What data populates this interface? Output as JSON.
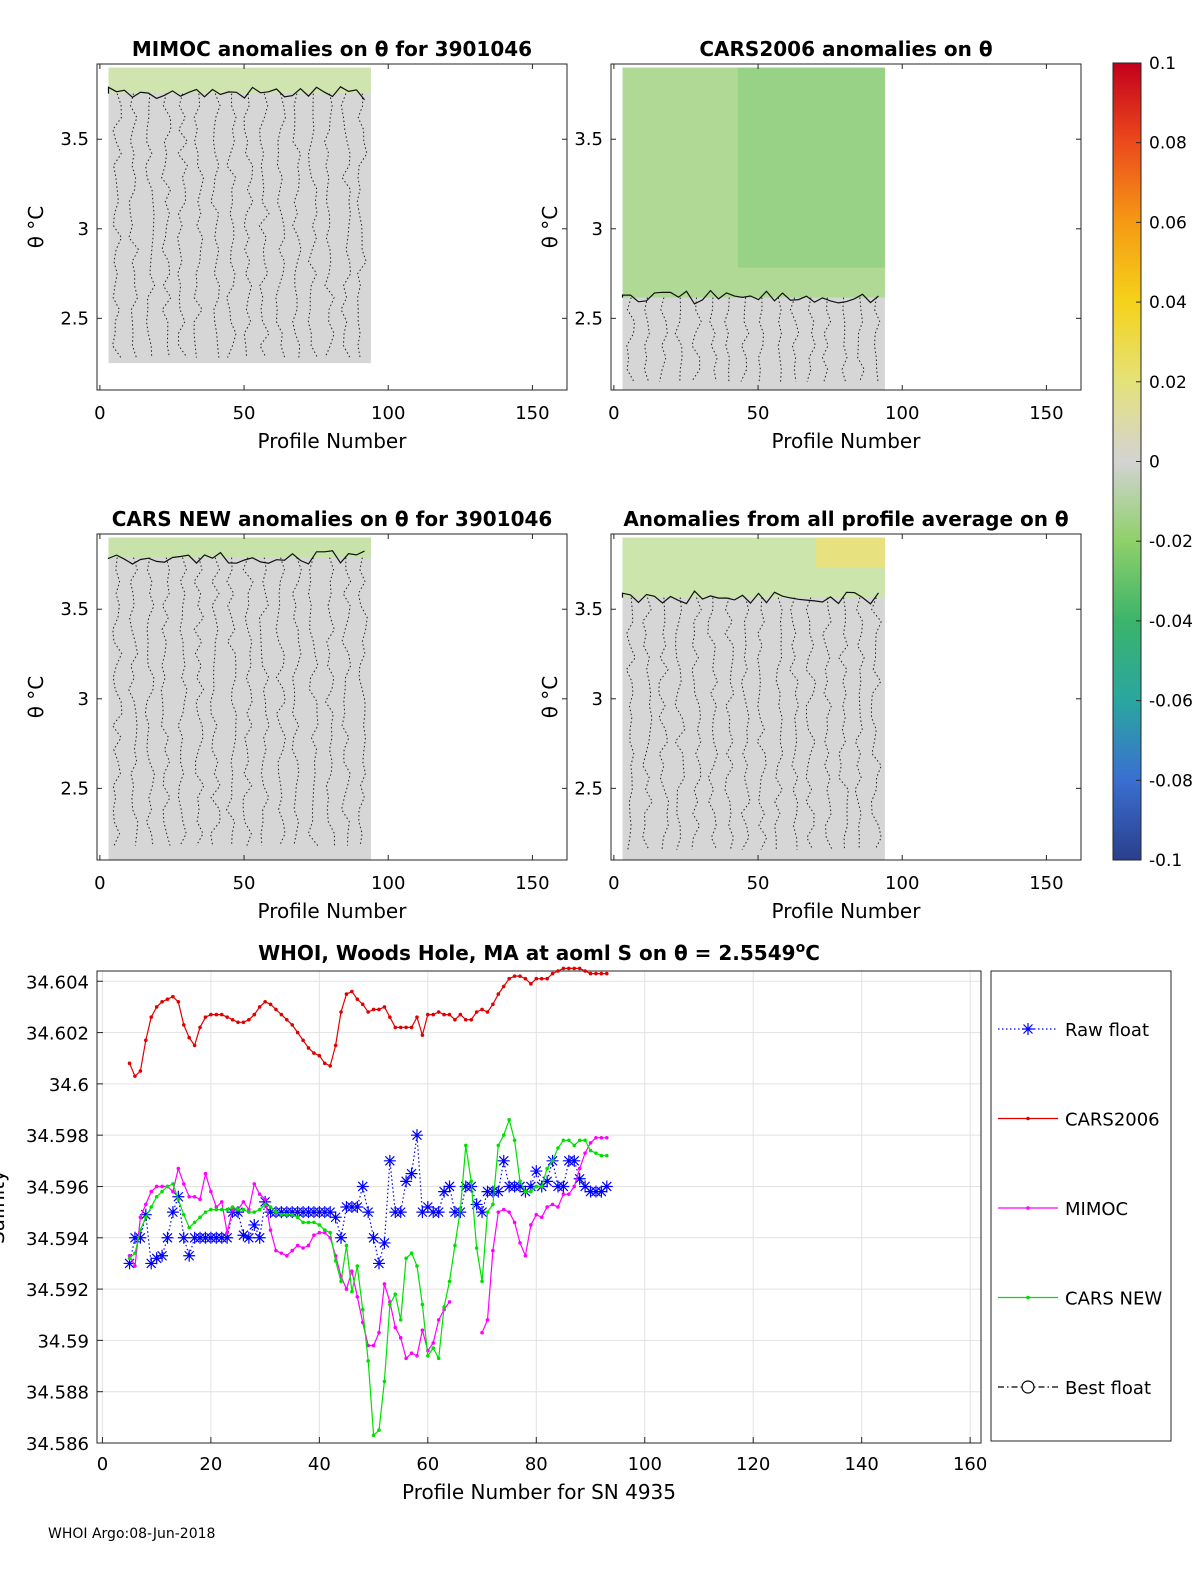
{
  "footer": "WHOI Argo:08-Jun-2018",
  "colorbar": {
    "ticks": [
      "0.1",
      "0.08",
      "0.06",
      "0.04",
      "0.02",
      "0",
      "-0.02",
      "-0.04",
      "-0.06",
      "-0.08",
      "-0.1"
    ],
    "stops": [
      "#2b3f8c",
      "#3a6fd1",
      "#2aa6a0",
      "#3bb46a",
      "#8fd06a",
      "#d3d3d3",
      "#e4e27a",
      "#f5d21a",
      "#f59a14",
      "#ec4a1c",
      "#c2001c"
    ]
  },
  "chart_data": [
    {
      "type": "heatmap",
      "title": "MIMOC anomalies on θ  for 3901046",
      "xlabel": "Profile Number",
      "ylabel": "θ °C",
      "xlim": [
        -1,
        162
      ],
      "ylim": [
        2.1,
        3.92
      ],
      "xticks": [
        "0",
        "50",
        "100",
        "150"
      ],
      "yticks": [
        "2.5",
        "3",
        "3.5"
      ],
      "data_extent": {
        "x": [
          3,
          94
        ],
        "y": [
          2.25,
          3.9
        ]
      },
      "anomaly_fill": "#cfe6a8"
    },
    {
      "type": "heatmap",
      "title": "CARS2006 anomalies on θ",
      "xlabel": "Profile Number",
      "ylabel": "θ °C",
      "xlim": [
        -1,
        162
      ],
      "ylim": [
        2.1,
        3.92
      ],
      "xticks": [
        "0",
        "50",
        "100",
        "150"
      ],
      "yticks": [
        "2.5",
        "3",
        "3.5"
      ],
      "data_extent": {
        "x": [
          3,
          94
        ],
        "y": [
          2.1,
          3.9
        ]
      },
      "anomaly_fill": "#a9d98a"
    },
    {
      "type": "heatmap",
      "title": "CARS NEW anomalies on θ for 3901046",
      "xlabel": "Profile Number",
      "ylabel": "θ °C",
      "xlim": [
        -1,
        162
      ],
      "ylim": [
        2.1,
        3.92
      ],
      "xticks": [
        "0",
        "50",
        "100",
        "150"
      ],
      "yticks": [
        "2.5",
        "3",
        "3.5"
      ],
      "data_extent": {
        "x": [
          3,
          94
        ],
        "y": [
          2.1,
          3.9
        ]
      },
      "anomaly_fill": "#c6e5a2"
    },
    {
      "type": "heatmap",
      "title": "Anomalies from all profile average on θ",
      "xlabel": "Profile Number",
      "ylabel": "θ °C",
      "xlim": [
        -1,
        162
      ],
      "ylim": [
        2.1,
        3.92
      ],
      "xticks": [
        "0",
        "50",
        "100",
        "150"
      ],
      "yticks": [
        "2.5",
        "3",
        "3.5"
      ],
      "data_extent": {
        "x": [
          3,
          94
        ],
        "y": [
          2.1,
          3.9
        ]
      },
      "anomaly_fill": "#c9e7a6"
    },
    {
      "type": "line",
      "title": "WHOI, Woods Hole, MA at aoml S on θ = 2.5549°C",
      "xlabel": "Profile Number for SN 4935",
      "ylabel": "Salinity",
      "xlim": [
        -1,
        162
      ],
      "ylim": [
        34.586,
        34.6044
      ],
      "xticks": [
        "0",
        "20",
        "40",
        "60",
        "80",
        "100",
        "120",
        "140",
        "160"
      ],
      "yticks": [
        "34.586",
        "34.588",
        "34.59",
        "34.592",
        "34.594",
        "34.596",
        "34.598",
        "34.6",
        "34.602",
        "34.604"
      ],
      "legend_position": "right",
      "series": [
        {
          "name": "Raw float",
          "color": "#0000ff",
          "style": "dotted-star",
          "x": [
            5,
            6,
            7,
            8,
            9,
            10,
            11,
            12,
            13,
            14,
            15,
            16,
            17,
            18,
            19,
            20,
            21,
            22,
            23,
            24,
            25,
            26,
            27,
            28,
            29,
            30,
            31,
            32,
            33,
            34,
            35,
            36,
            37,
            38,
            39,
            40,
            41,
            42,
            43,
            44,
            45,
            46,
            47,
            48,
            49,
            50,
            51,
            52,
            53,
            54,
            55,
            56,
            57,
            58,
            59,
            60,
            61,
            62,
            63,
            64,
            65,
            66,
            67,
            68,
            69,
            70,
            71,
            72,
            73,
            74,
            75,
            76,
            77,
            78,
            79,
            80,
            81,
            82,
            83,
            84,
            85,
            86,
            87,
            88,
            89,
            90,
            91,
            92,
            93
          ],
          "y": [
            34.593,
            34.594,
            34.594,
            34.5949,
            34.593,
            34.5932,
            34.5933,
            34.594,
            34.595,
            34.5956,
            34.594,
            34.5933,
            34.594,
            34.594,
            34.594,
            34.594,
            34.594,
            34.594,
            34.594,
            34.595,
            34.595,
            34.5941,
            34.594,
            34.5945,
            34.594,
            34.5954,
            34.595,
            34.595,
            34.595,
            34.595,
            34.595,
            34.595,
            34.595,
            34.595,
            34.595,
            34.595,
            34.595,
            34.595,
            34.5948,
            34.594,
            34.5952,
            34.5952,
            34.5952,
            34.596,
            34.595,
            34.594,
            34.593,
            34.5938,
            34.597,
            34.595,
            34.595,
            34.5962,
            34.5965,
            34.598,
            34.595,
            34.5952,
            34.595,
            34.595,
            34.5958,
            34.596,
            34.595,
            34.595,
            34.596,
            34.596,
            34.5953,
            34.595,
            34.5958,
            34.5958,
            34.5958,
            34.597,
            34.596,
            34.596,
            34.596,
            34.5958,
            34.596,
            34.5966,
            34.596,
            34.5962,
            34.597,
            34.596,
            34.596,
            34.597,
            34.597,
            34.5963,
            34.596,
            34.5958,
            34.5958,
            34.5958,
            34.596
          ]
        },
        {
          "name": "CARS2006",
          "color": "#e00000",
          "style": "solid-dot",
          "x": [
            5,
            6,
            7,
            8,
            9,
            10,
            11,
            12,
            13,
            14,
            15,
            16,
            17,
            18,
            19,
            20,
            21,
            22,
            23,
            24,
            25,
            26,
            27,
            28,
            29,
            30,
            31,
            32,
            33,
            34,
            35,
            36,
            37,
            38,
            39,
            40,
            41,
            42,
            43,
            44,
            45,
            46,
            47,
            48,
            49,
            50,
            51,
            52,
            53,
            54,
            55,
            56,
            57,
            58,
            59,
            60,
            61,
            62,
            63,
            64,
            65,
            66,
            67,
            68,
            69,
            70,
            71,
            72,
            73,
            74,
            75,
            76,
            77,
            78,
            79,
            80,
            81,
            82,
            83,
            84,
            85,
            86,
            87,
            88,
            89,
            90,
            91,
            92,
            93
          ],
          "y": [
            34.6008,
            34.6003,
            34.6005,
            34.6017,
            34.6026,
            34.603,
            34.6032,
            34.6033,
            34.6034,
            34.6032,
            34.6023,
            34.6018,
            34.6015,
            34.6022,
            34.6026,
            34.6027,
            34.6027,
            34.6027,
            34.6026,
            34.6025,
            34.6024,
            34.6024,
            34.6025,
            34.6027,
            34.603,
            34.6032,
            34.6031,
            34.6029,
            34.6027,
            34.6025,
            34.6023,
            34.602,
            34.6017,
            34.6014,
            34.6012,
            34.6011,
            34.6008,
            34.6007,
            34.6015,
            34.6028,
            34.6035,
            34.6036,
            34.6033,
            34.6031,
            34.6028,
            34.6029,
            34.6029,
            34.603,
            34.6026,
            34.6022,
            34.6022,
            34.6022,
            34.6022,
            34.6026,
            34.6019,
            34.6027,
            34.6027,
            34.6028,
            34.6027,
            34.6027,
            34.6025,
            34.6027,
            34.6025,
            34.6025,
            34.6028,
            34.6029,
            34.6028,
            34.6031,
            34.6035,
            34.6038,
            34.6041,
            34.6042,
            34.6042,
            34.6041,
            34.6039,
            34.6041,
            34.6041,
            34.6041,
            34.6043,
            34.6044,
            34.6045,
            34.6045,
            34.6045,
            34.6045,
            34.6044,
            34.6043,
            34.6043,
            34.6043,
            34.6043
          ]
        },
        {
          "name": "MIMOC",
          "color": "#ff00ff",
          "style": "solid-dot",
          "x": [
            5,
            6,
            7,
            8,
            9,
            10,
            11,
            12,
            13,
            14,
            15,
            16,
            17,
            18,
            19,
            20,
            21,
            22,
            23,
            24,
            25,
            26,
            27,
            28,
            29,
            30,
            31,
            32,
            33,
            34,
            35,
            36,
            37,
            38,
            39,
            40,
            41,
            42,
            43,
            44,
            45,
            46,
            47,
            48,
            49,
            50,
            51,
            52,
            53,
            54,
            55,
            56,
            57,
            58,
            59,
            60,
            61,
            62,
            63,
            64,
            null,
            70,
            71,
            72,
            73,
            74,
            75,
            76,
            77,
            78,
            79,
            80,
            81,
            82,
            83,
            84,
            85,
            86,
            87,
            88,
            89,
            90,
            91,
            92,
            93
          ],
          "y": [
            34.5933,
            34.5929,
            34.5948,
            34.5953,
            34.5958,
            34.596,
            34.596,
            34.596,
            34.5958,
            34.5967,
            34.5961,
            34.5956,
            34.5956,
            34.5955,
            34.5965,
            34.5958,
            34.5952,
            34.5954,
            34.5942,
            34.5951,
            34.5951,
            34.5954,
            34.5951,
            34.5961,
            34.5957,
            34.5955,
            34.5943,
            34.5935,
            34.5934,
            34.5933,
            34.5935,
            34.5937,
            34.5936,
            34.5937,
            34.5941,
            34.5942,
            34.5942,
            34.594,
            34.5933,
            34.5925,
            34.592,
            34.5927,
            34.5917,
            34.5907,
            34.5898,
            34.5898,
            34.5903,
            34.5922,
            34.5915,
            34.5905,
            34.5901,
            34.5893,
            34.5895,
            34.5894,
            34.5904,
            34.5896,
            34.5899,
            34.5908,
            34.5912,
            34.5915,
            null,
            34.5903,
            34.5908,
            34.5935,
            34.595,
            34.5951,
            34.595,
            34.5946,
            34.5938,
            34.5933,
            34.5945,
            34.5949,
            34.5948,
            34.5952,
            34.5953,
            34.5952,
            34.5957,
            34.5957,
            34.596,
            34.5967,
            34.5973,
            34.5977,
            34.5979,
            34.5979,
            34.5979
          ]
        },
        {
          "name": "CARS NEW",
          "color": "#00e000",
          "style": "solid-dot",
          "x": [
            5,
            6,
            7,
            8,
            9,
            10,
            11,
            12,
            13,
            14,
            15,
            16,
            17,
            18,
            19,
            20,
            21,
            22,
            23,
            24,
            25,
            26,
            27,
            28,
            29,
            30,
            31,
            32,
            33,
            34,
            35,
            36,
            37,
            38,
            39,
            40,
            41,
            42,
            43,
            44,
            45,
            46,
            47,
            48,
            49,
            50,
            51,
            52,
            53,
            54,
            55,
            56,
            57,
            58,
            59,
            60,
            61,
            62,
            63,
            64,
            65,
            66,
            67,
            68,
            69,
            70,
            71,
            72,
            73,
            74,
            75,
            76,
            77,
            78,
            79,
            80,
            81,
            82,
            83,
            84,
            85,
            86,
            87,
            88,
            89,
            90,
            91,
            92,
            93
          ],
          "y": [
            34.5932,
            34.5934,
            34.5943,
            34.5948,
            34.5952,
            34.5956,
            34.5958,
            34.596,
            34.5961,
            34.5955,
            34.5949,
            34.5944,
            34.5946,
            34.5948,
            34.595,
            34.5951,
            34.5951,
            34.5951,
            34.5951,
            34.5952,
            34.5951,
            34.5951,
            34.595,
            34.595,
            34.5951,
            34.5953,
            34.5952,
            34.595,
            34.5949,
            34.5949,
            34.5949,
            34.5948,
            34.5946,
            34.5946,
            34.5946,
            34.5945,
            34.5943,
            34.5942,
            34.5931,
            34.5923,
            34.5937,
            34.5919,
            34.5929,
            34.5912,
            34.5892,
            34.5863,
            34.5865,
            34.5884,
            34.5914,
            34.5918,
            34.5908,
            34.5932,
            34.5934,
            34.5929,
            34.5914,
            34.5894,
            34.5897,
            34.5893,
            34.5913,
            34.5923,
            34.5937,
            34.5951,
            34.5976,
            34.5962,
            34.5936,
            34.5923,
            34.595,
            34.5953,
            34.5976,
            34.598,
            34.5986,
            34.5978,
            34.5962,
            34.5958,
            34.5958,
            34.596,
            34.596,
            34.5967,
            34.597,
            34.5975,
            34.5978,
            34.5978,
            34.5976,
            34.5978,
            34.5978,
            34.5974,
            34.5973,
            34.5972,
            34.5972
          ]
        },
        {
          "name": "Best float",
          "color": "#000000",
          "style": "dashdot-circle",
          "x": [],
          "y": []
        }
      ]
    }
  ]
}
